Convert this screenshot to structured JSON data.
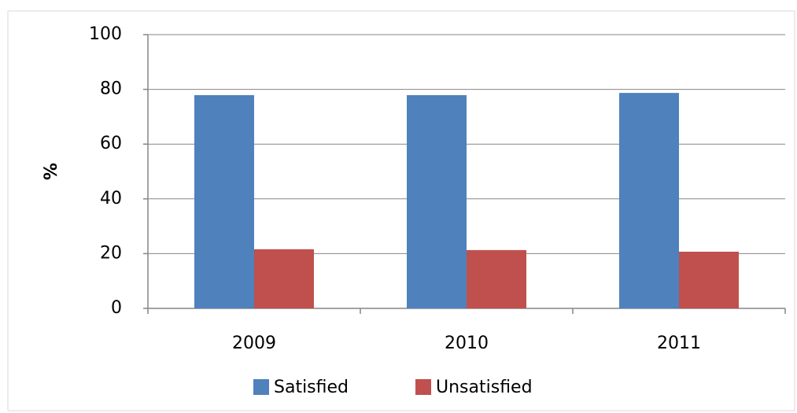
{
  "chart_data": {
    "type": "bar",
    "y_label": "%",
    "categories": [
      "2009",
      "2010",
      "2011"
    ],
    "series": [
      {
        "name": "Satisfied",
        "color": "#4f81bd",
        "values": [
          77.9,
          77.9,
          78.7
        ]
      },
      {
        "name": "Unsatisfied",
        "color": "#c0504d",
        "values": [
          21.6,
          21.3,
          20.7
        ]
      }
    ],
    "ylim": [
      0,
      100
    ],
    "yticks": [
      0,
      20,
      40,
      60,
      80,
      100
    ],
    "grid": true,
    "legend": "bottom"
  }
}
